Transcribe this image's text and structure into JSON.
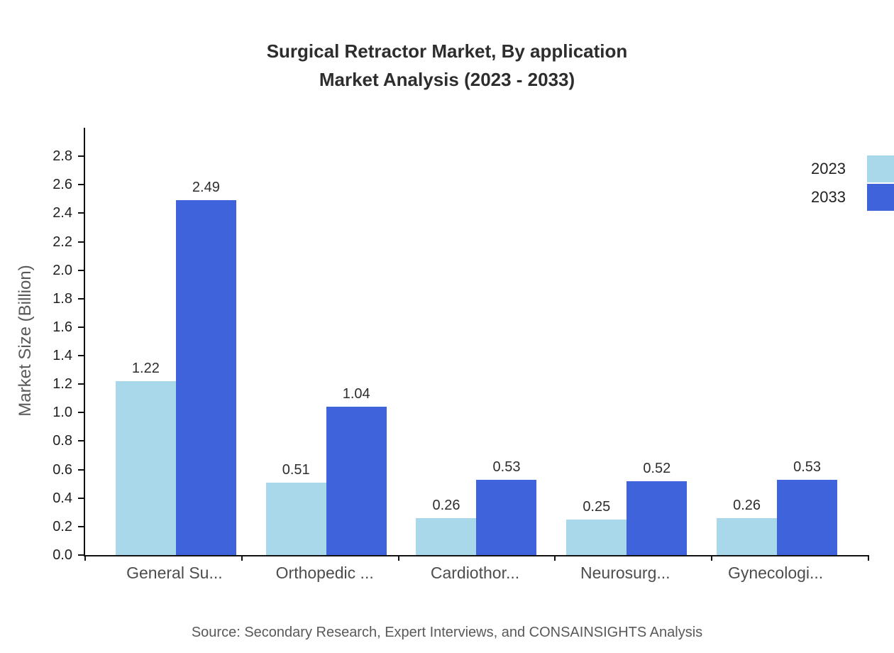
{
  "chart_data": {
    "type": "bar",
    "title_line1": "Surgical Retractor Market, By application",
    "title_line2": "Market Analysis (2023 - 2033)",
    "ylabel": "Market Size (Billion)",
    "categories": [
      "General Su...",
      "Orthopedic ...",
      "Cardiothor...",
      "Neurosurg...",
      "Gynecologi..."
    ],
    "series": [
      {
        "name": "2023",
        "color": "#a8d8ea",
        "values": [
          1.22,
          0.51,
          0.26,
          0.25,
          0.26
        ]
      },
      {
        "name": "2033",
        "color": "#3f63db",
        "values": [
          2.49,
          1.04,
          0.53,
          0.52,
          0.53
        ]
      }
    ],
    "ylim": [
      0,
      3.0
    ],
    "yticks": [
      0.0,
      0.2,
      0.4,
      0.6,
      0.8,
      1.0,
      1.2,
      1.4,
      1.6,
      1.8,
      2.0,
      2.2,
      2.4,
      2.6,
      2.8
    ],
    "grid": false,
    "legend_position": "top-right",
    "source": "Source: Secondary Research, Expert Interviews, and CONSAINSIGHTS Analysis"
  }
}
